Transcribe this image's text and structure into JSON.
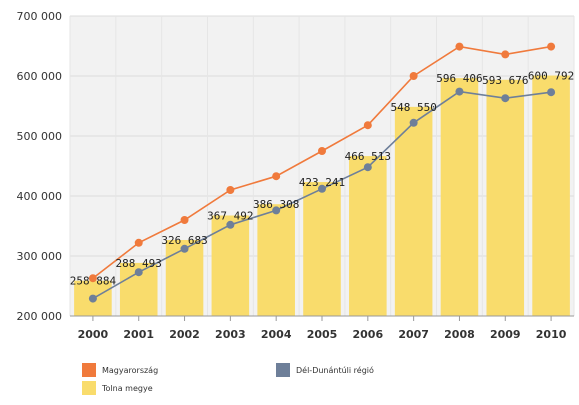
{
  "chart_data": {
    "type": "bar",
    "categories": [
      "2000",
      "2001",
      "2002",
      "2003",
      "2004",
      "2005",
      "2006",
      "2007",
      "2008",
      "2009",
      "2010"
    ],
    "series": [
      {
        "name": "Tolna megye",
        "type": "bar",
        "color": "#f9dc6c",
        "values": [
          258884,
          288493,
          326683,
          367492,
          386308,
          423241,
          466513,
          548550,
          596406,
          593676,
          600792
        ],
        "labels": [
          "258 884",
          "288 493",
          "326 683",
          "367 492",
          "386 308",
          "423 241",
          "466 513",
          "548 550",
          "596 406",
          "593 676",
          "600 792"
        ]
      },
      {
        "name": "Magyarország",
        "type": "line",
        "color": "#f07a3c",
        "values": [
          263000,
          322000,
          360000,
          410000,
          433000,
          475000,
          518000,
          600000,
          649000,
          636000,
          649000
        ]
      },
      {
        "name": "Dél-Dunántúli régió",
        "type": "line",
        "color": "#6e7f99",
        "values": [
          229000,
          273000,
          312000,
          352000,
          376000,
          412000,
          448000,
          522000,
          574000,
          563000,
          573000
        ]
      }
    ],
    "yticks": [
      "200 000",
      "300 000",
      "400 000",
      "500 000",
      "600 000",
      "700 000"
    ],
    "ylim": [
      200000,
      700000
    ],
    "grid": true,
    "legend_position": "bottom"
  }
}
